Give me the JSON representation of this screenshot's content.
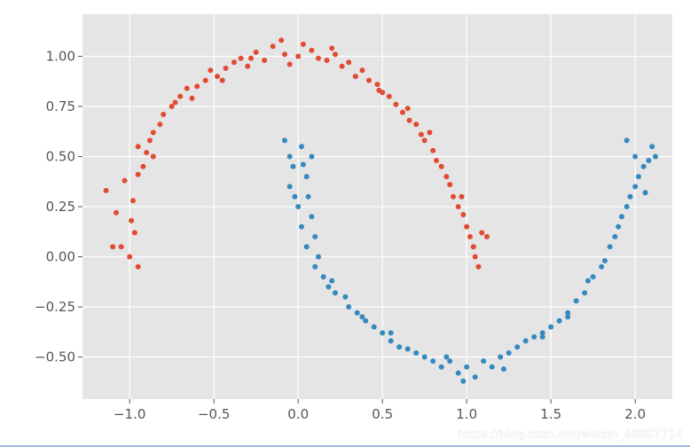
{
  "watermark": "https://blog.csdn.net/weixin_40807714",
  "style": {
    "plot_background": "#e5e5e5",
    "grid_color": "#ffffff",
    "tick_color": "#555555"
  },
  "chart_data": {
    "type": "scatter",
    "title": "",
    "xlabel": "",
    "ylabel": "",
    "xlim": [
      -1.28,
      2.22
    ],
    "ylim": [
      -0.71,
      1.21
    ],
    "grid": true,
    "x_ticks": [
      -1.0,
      -0.5,
      0.0,
      0.5,
      1.0,
      1.5,
      2.0
    ],
    "x_tick_labels": [
      "−1.0",
      "−0.5",
      "0.0",
      "0.5",
      "1.0",
      "1.5",
      "2.0"
    ],
    "y_ticks": [
      1.0,
      0.75,
      0.5,
      0.25,
      0.0,
      -0.25,
      -0.5
    ],
    "y_tick_labels": [
      "1.00",
      "0.75",
      "0.50",
      "0.25",
      "0.00",
      "−0.25",
      "−0.50"
    ],
    "series": [
      {
        "color": "#e24a33",
        "points": [
          [
            -1.14,
            0.33
          ],
          [
            -1.08,
            0.22
          ],
          [
            -1.1,
            0.05
          ],
          [
            -1.05,
            0.05
          ],
          [
            -0.98,
            0.28
          ],
          [
            -0.97,
            0.12
          ],
          [
            -1.0,
            0.0
          ],
          [
            -0.95,
            -0.05
          ],
          [
            -1.03,
            0.38
          ],
          [
            -0.95,
            0.41
          ],
          [
            -0.92,
            0.45
          ],
          [
            -0.9,
            0.52
          ],
          [
            -0.95,
            0.55
          ],
          [
            -0.88,
            0.58
          ],
          [
            -0.86,
            0.62
          ],
          [
            -0.82,
            0.66
          ],
          [
            -0.8,
            0.71
          ],
          [
            -0.75,
            0.75
          ],
          [
            -0.73,
            0.77
          ],
          [
            -0.7,
            0.8
          ],
          [
            -0.66,
            0.84
          ],
          [
            -0.6,
            0.85
          ],
          [
            -0.55,
            0.88
          ],
          [
            -0.52,
            0.93
          ],
          [
            -0.48,
            0.9
          ],
          [
            -0.43,
            0.94
          ],
          [
            -0.38,
            0.97
          ],
          [
            -0.34,
            0.99
          ],
          [
            -0.3,
            0.95
          ],
          [
            -0.25,
            1.02
          ],
          [
            -0.2,
            0.98
          ],
          [
            -0.15,
            1.05
          ],
          [
            -0.1,
            1.08
          ],
          [
            -0.05,
            0.96
          ],
          [
            0.0,
            1.0
          ],
          [
            0.03,
            1.06
          ],
          [
            0.08,
            1.03
          ],
          [
            0.12,
            0.99
          ],
          [
            0.17,
            0.98
          ],
          [
            0.22,
            1.01
          ],
          [
            0.26,
            0.95
          ],
          [
            0.3,
            0.97
          ],
          [
            0.34,
            0.9
          ],
          [
            0.38,
            0.93
          ],
          [
            0.42,
            0.88
          ],
          [
            0.47,
            0.86
          ],
          [
            0.5,
            0.82
          ],
          [
            0.54,
            0.8
          ],
          [
            0.58,
            0.76
          ],
          [
            0.62,
            0.72
          ],
          [
            0.66,
            0.68
          ],
          [
            0.7,
            0.66
          ],
          [
            0.73,
            0.61
          ],
          [
            0.75,
            0.58
          ],
          [
            0.8,
            0.53
          ],
          [
            0.82,
            0.48
          ],
          [
            0.85,
            0.45
          ],
          [
            0.88,
            0.4
          ],
          [
            0.9,
            0.36
          ],
          [
            0.92,
            0.3
          ],
          [
            0.95,
            0.25
          ],
          [
            0.98,
            0.21
          ],
          [
            1.0,
            0.15
          ],
          [
            1.02,
            0.1
          ],
          [
            1.04,
            0.05
          ],
          [
            1.05,
            0.0
          ],
          [
            1.07,
            -0.05
          ],
          [
            1.09,
            0.12
          ],
          [
            1.12,
            0.1
          ],
          [
            -0.63,
            0.79
          ],
          [
            -0.28,
            0.99
          ],
          [
            0.48,
            0.83
          ],
          [
            0.97,
            0.3
          ],
          [
            -0.86,
            0.5
          ],
          [
            -0.99,
            0.18
          ],
          [
            0.65,
            0.74
          ],
          [
            0.78,
            0.62
          ],
          [
            -0.45,
            0.88
          ],
          [
            0.2,
            1.04
          ],
          [
            -0.08,
            1.01
          ]
        ]
      },
      {
        "color": "#348abd",
        "points": [
          [
            -0.08,
            0.58
          ],
          [
            -0.05,
            0.5
          ],
          [
            0.02,
            0.55
          ],
          [
            0.08,
            0.5
          ],
          [
            -0.03,
            0.45
          ],
          [
            0.05,
            0.4
          ],
          [
            -0.05,
            0.35
          ],
          [
            0.06,
            0.3
          ],
          [
            0.0,
            0.25
          ],
          [
            0.08,
            0.2
          ],
          [
            0.02,
            0.15
          ],
          [
            0.1,
            0.1
          ],
          [
            0.05,
            0.05
          ],
          [
            0.12,
            0.0
          ],
          [
            0.1,
            -0.05
          ],
          [
            0.15,
            -0.1
          ],
          [
            0.2,
            -0.12
          ],
          [
            0.22,
            -0.18
          ],
          [
            0.28,
            -0.2
          ],
          [
            0.3,
            -0.25
          ],
          [
            0.35,
            -0.28
          ],
          [
            0.4,
            -0.32
          ],
          [
            0.45,
            -0.35
          ],
          [
            0.5,
            -0.38
          ],
          [
            0.55,
            -0.42
          ],
          [
            0.6,
            -0.45
          ],
          [
            0.65,
            -0.46
          ],
          [
            0.7,
            -0.48
          ],
          [
            0.75,
            -0.5
          ],
          [
            0.8,
            -0.52
          ],
          [
            0.85,
            -0.55
          ],
          [
            0.9,
            -0.52
          ],
          [
            0.95,
            -0.58
          ],
          [
            1.0,
            -0.55
          ],
          [
            1.05,
            -0.6
          ],
          [
            1.1,
            -0.52
          ],
          [
            1.15,
            -0.55
          ],
          [
            1.2,
            -0.5
          ],
          [
            1.25,
            -0.48
          ],
          [
            1.3,
            -0.45
          ],
          [
            1.35,
            -0.42
          ],
          [
            1.4,
            -0.4
          ],
          [
            1.45,
            -0.38
          ],
          [
            1.5,
            -0.35
          ],
          [
            1.55,
            -0.32
          ],
          [
            1.6,
            -0.28
          ],
          [
            1.65,
            -0.22
          ],
          [
            1.7,
            -0.18
          ],
          [
            1.75,
            -0.1
          ],
          [
            1.8,
            -0.05
          ],
          [
            1.85,
            0.05
          ],
          [
            1.88,
            0.1
          ],
          [
            1.9,
            0.15
          ],
          [
            1.92,
            0.2
          ],
          [
            1.95,
            0.25
          ],
          [
            1.97,
            0.3
          ],
          [
            2.0,
            0.35
          ],
          [
            2.02,
            0.4
          ],
          [
            2.05,
            0.45
          ],
          [
            2.08,
            0.48
          ],
          [
            2.1,
            0.55
          ],
          [
            1.95,
            0.58
          ],
          [
            2.0,
            0.5
          ],
          [
            2.12,
            0.5
          ],
          [
            0.98,
            -0.62
          ],
          [
            0.55,
            -0.38
          ],
          [
            1.82,
            -0.02
          ],
          [
            0.18,
            -0.15
          ],
          [
            -0.02,
            0.3
          ],
          [
            1.45,
            -0.4
          ],
          [
            0.03,
            0.46
          ],
          [
            1.6,
            -0.3
          ],
          [
            2.06,
            0.32
          ],
          [
            0.38,
            -0.3
          ],
          [
            1.22,
            -0.56
          ],
          [
            0.88,
            -0.5
          ],
          [
            1.72,
            -0.12
          ]
        ]
      }
    ]
  }
}
